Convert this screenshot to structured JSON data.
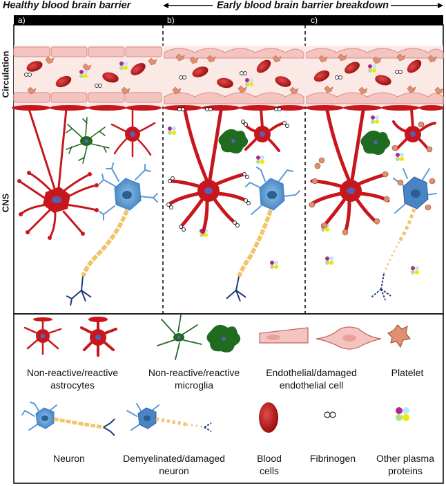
{
  "headers": {
    "healthy": "Healthy blood brain barrier",
    "early": "Early blood brain barrier breakdown"
  },
  "panels": [
    "a)",
    "b)",
    "c)"
  ],
  "side_labels": {
    "circulation": "Circulation",
    "cns": "CNS"
  },
  "legend": [
    {
      "label": "Non-reactive/reactive\nastrocytes"
    },
    {
      "label": "Non-reactive/reactive\nmicroglia"
    },
    {
      "label": "Endothelial/damaged\nendothelial cell"
    },
    {
      "label": "Platelet"
    },
    {
      "label": "Neuron"
    },
    {
      "label": "Demyelinated/damaged\nneuron"
    },
    {
      "label": "Blood\ncells"
    },
    {
      "label": "Fibrinogen"
    },
    {
      "label": "Other plasma\nproteins"
    }
  ],
  "colors": {
    "astrocyte": "#c8161d",
    "microglia": "#1f6b1f",
    "endothelial": "#f4c4c0",
    "platelet": "#e09070",
    "neuron": "#5b9bd5",
    "axon_end": "#1f3a7a",
    "myelin": "#f2c46b"
  }
}
